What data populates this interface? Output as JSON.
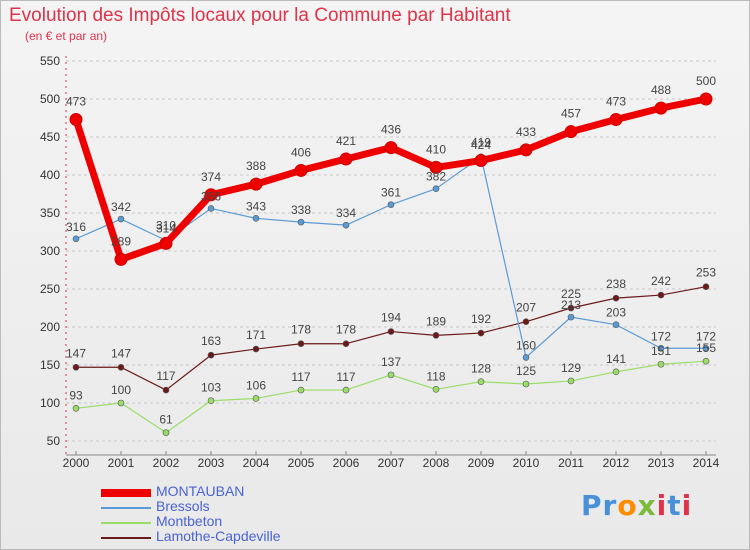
{
  "title": "Evolution des Impôts locaux pour la Commune par Habitant",
  "subtitle": "(en € et par an)",
  "brand": "Proxiti",
  "chart_data": {
    "type": "line",
    "title": "Evolution des Impôts locaux pour la Commune par Habitant",
    "subtitle": "(en € et par an)",
    "x": [
      2000,
      2001,
      2002,
      2003,
      2004,
      2005,
      2006,
      2007,
      2008,
      2009,
      2010,
      2011,
      2012,
      2013,
      2014
    ],
    "ylim": [
      50,
      550
    ],
    "yticks": [
      50,
      100,
      150,
      200,
      250,
      300,
      350,
      400,
      450,
      500,
      550
    ],
    "grid": "horizontal-dashed",
    "legend": "bottom-left",
    "series": [
      {
        "name": "MONTAUBAN",
        "color": "#ee0000",
        "values": [
          473,
          289,
          310,
          374,
          388,
          406,
          421,
          436,
          410,
          419,
          433,
          457,
          473,
          488,
          500
        ]
      },
      {
        "name": "Bressols",
        "color": "#5b9bd5",
        "values": [
          316,
          342,
          314,
          356,
          343,
          338,
          334,
          361,
          382,
          424,
          160,
          213,
          203,
          172,
          172
        ]
      },
      {
        "name": "Montbeton",
        "color": "#99dd66",
        "values": [
          93,
          100,
          61,
          103,
          106,
          117,
          117,
          137,
          118,
          128,
          125,
          129,
          141,
          151,
          155
        ]
      },
      {
        "name": "Lamothe-Capdeville",
        "color": "#6b1a1a",
        "values": [
          147,
          147,
          117,
          163,
          171,
          178,
          178,
          194,
          189,
          192,
          207,
          225,
          238,
          242,
          253
        ]
      }
    ]
  }
}
